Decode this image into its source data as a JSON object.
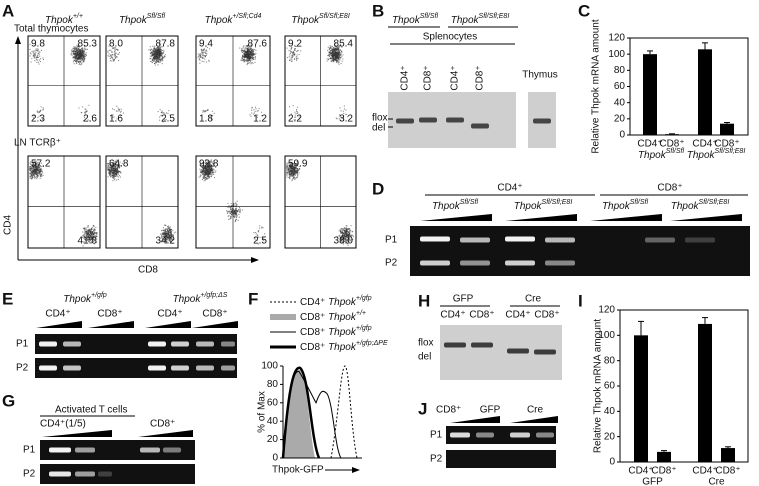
{
  "A": {
    "letter": "A",
    "genotypes": [
      {
        "gene": "Thpok",
        "sup": "+/+"
      },
      {
        "gene": "Thpok",
        "sup": "Sfl/Sfl"
      },
      {
        "gene": "Thpok",
        "sup": "+/Sfl;Cd4"
      },
      {
        "gene": "Thpok",
        "sup": "Sfl/Sfl;E8I"
      }
    ],
    "rows": [
      {
        "label": "Total thymocytes",
        "quadrants": [
          [
            "9.8",
            "85.3",
            "2.3",
            "2.6"
          ],
          [
            "8.0",
            "87.8",
            "1.6",
            "2.5"
          ],
          [
            "9.4",
            "87.6",
            "1.8",
            "1.2"
          ],
          [
            "9.2",
            "85.4",
            "2.2",
            "3.2"
          ]
        ]
      },
      {
        "label": "LN TCRβ⁺",
        "quadrants": [
          [
            "57.2",
            "41.8"
          ],
          [
            "64.8",
            "34.2"
          ],
          [
            "92.8",
            "2.5"
          ],
          [
            "59.9",
            "38.0"
          ]
        ]
      }
    ],
    "y_axis": "CD4",
    "x_axis": "CD8"
  },
  "B": {
    "letter": "B",
    "genotypes": [
      {
        "gene": "Thpok",
        "sup": "Sfl/Sfl"
      },
      {
        "gene": "Thpok",
        "sup": "Sfl/Sfl;E8I"
      }
    ],
    "source": "Splenocytes",
    "lanes": [
      "CD4⁺",
      "CD8⁺",
      "CD4⁺",
      "CD8⁺"
    ],
    "thymus": "Thymus",
    "bands": [
      "flox",
      "del"
    ]
  },
  "C": {
    "letter": "C",
    "type": "bar",
    "y_label": "Relative Thpok mRNA amount",
    "categories": [
      "CD4⁺",
      "CD8⁺",
      "CD4⁺",
      "CD8⁺"
    ],
    "groups": [
      {
        "gene": "Thpok",
        "sup": "Sfl/Sfl"
      },
      {
        "gene": "Thpok",
        "sup": "Sfl/Sfl;E8I"
      }
    ],
    "values": [
      100,
      1,
      106,
      14
    ],
    "errors": [
      4,
      0.5,
      8,
      1.5
    ],
    "ylim": [
      0,
      120
    ],
    "yticks": [
      0,
      20,
      40,
      60,
      80,
      100,
      120
    ],
    "color": "#000000"
  },
  "D": {
    "letter": "D",
    "cells": [
      "CD4⁺",
      "CD8⁺"
    ],
    "genotypes": [
      {
        "gene": "Thpok",
        "sup": "Sfl/Sfl"
      },
      {
        "gene": "Thpok",
        "sup": "Sfl/Sfl;E8I"
      },
      {
        "gene": "Thpok",
        "sup": "Sfl/Sfl"
      },
      {
        "gene": "Thpok",
        "sup": "Sfl/Sfl;E8I"
      }
    ],
    "primers": [
      "P1",
      "P2"
    ]
  },
  "E": {
    "letter": "E",
    "genotypes": [
      {
        "gene": "Thpok",
        "sup": "+/gfp"
      },
      {
        "gene": "Thpok",
        "sup": "+/gfp;ΔS"
      }
    ],
    "cells": [
      "CD4⁺",
      "CD8⁺",
      "CD4⁺",
      "CD8⁺"
    ],
    "primers": [
      "P1",
      "P2"
    ]
  },
  "F": {
    "letter": "F",
    "legend": [
      {
        "cell": "CD4⁺",
        "gene": "Thpok",
        "sup": "+/gfp"
      },
      {
        "cell": "CD8⁺",
        "gene": "Thpok",
        "sup": "+/+"
      },
      {
        "cell": "CD8⁺",
        "gene": "Thpok",
        "sup": "+/gfp"
      },
      {
        "cell": "CD8⁺",
        "gene": "Thpok",
        "sup": "+/gfp;ΔPE"
      }
    ],
    "y_label": "% of Max",
    "x_label": "Thpok-GFP",
    "ylim": [
      0,
      100
    ],
    "yticks": [
      0,
      20,
      40,
      60,
      80,
      100
    ]
  },
  "G": {
    "letter": "G",
    "title": "Activated T cells",
    "cells": [
      "CD4⁺(1/5)",
      "CD8⁺"
    ],
    "primers": [
      "P1",
      "P2"
    ]
  },
  "H": {
    "letter": "H",
    "groups": [
      "GFP",
      "Cre"
    ],
    "cells": [
      "CD4⁺",
      "CD8⁺",
      "CD4⁺",
      "CD8⁺"
    ],
    "bands": [
      "flox",
      "del"
    ]
  },
  "I": {
    "letter": "I",
    "type": "bar",
    "y_label": "Relative Thpok mRNA amount",
    "categories": [
      "CD4⁺",
      "CD8⁺",
      "CD4⁺",
      "CD8⁺"
    ],
    "groups": [
      "GFP",
      "Cre"
    ],
    "values": [
      100,
      8,
      109,
      11
    ],
    "errors": [
      11,
      1,
      5,
      1
    ],
    "ylim": [
      0,
      120
    ],
    "yticks": [
      0,
      20,
      40,
      60,
      80,
      100,
      120
    ],
    "color": "#000000"
  },
  "J": {
    "letter": "J",
    "cell": "CD8⁺",
    "groups": [
      "GFP",
      "Cre"
    ],
    "primers": [
      "P1",
      "P2"
    ]
  }
}
